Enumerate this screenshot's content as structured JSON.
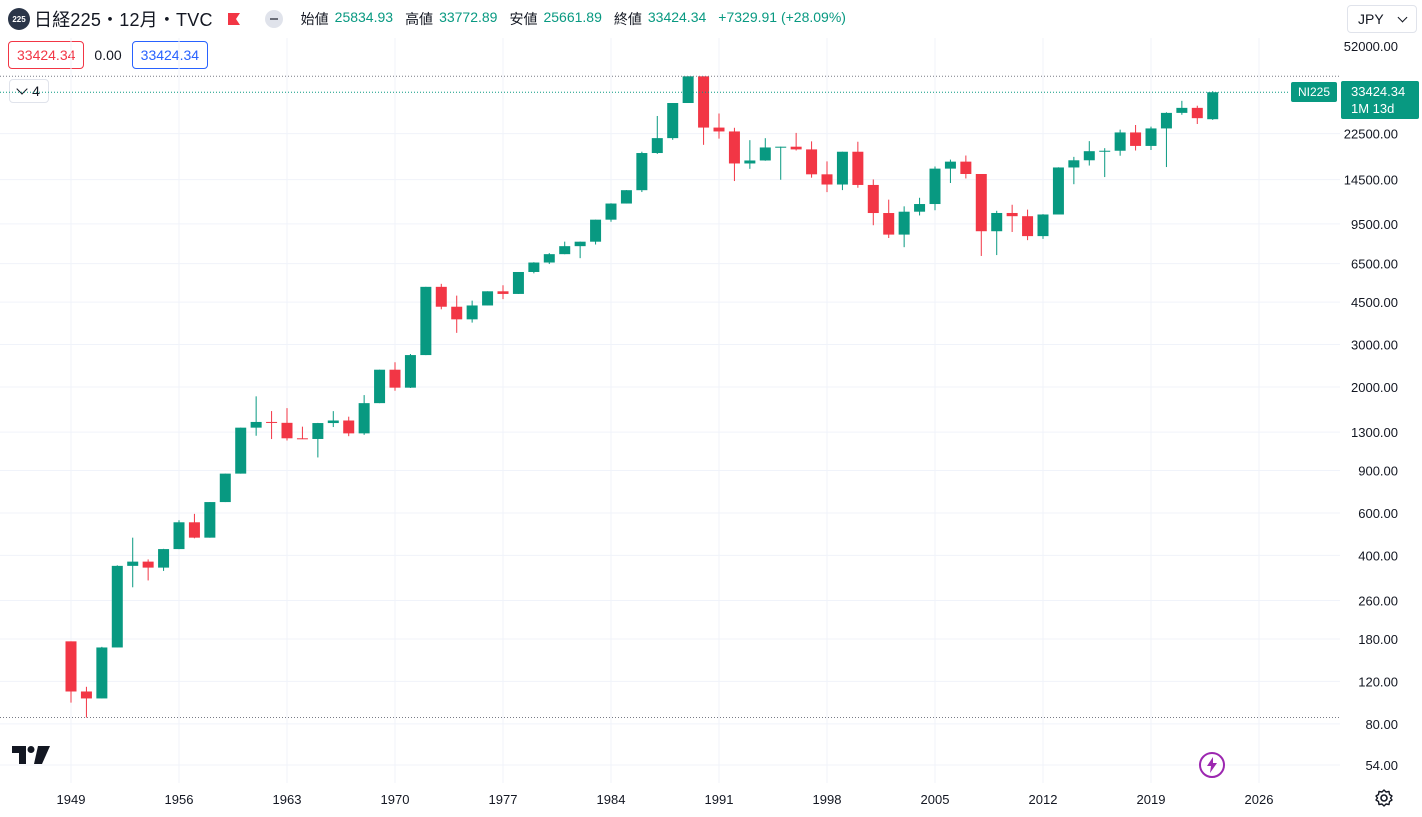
{
  "header": {
    "symbol_icon": "225",
    "title": "日経225・12月・TVC",
    "ohlc": [
      {
        "label": "始値",
        "value": "25834.93"
      },
      {
        "label": "高値",
        "value": "33772.89"
      },
      {
        "label": "安値",
        "value": "25661.89"
      },
      {
        "label": "終値",
        "value": "33424.34"
      },
      {
        "label": "",
        "value": "+7329.91 (+28.09%)"
      }
    ],
    "sell_price": "33424.34",
    "spread": "0.00",
    "buy_price": "33424.34",
    "indicator_count": "4",
    "currency": "JPY"
  },
  "price_tag": {
    "symbol": "NI225",
    "price": "33424.34",
    "countdown": "1M 13d"
  },
  "colors": {
    "up": "#089981",
    "down": "#f23645",
    "grid": "#f0f3fa",
    "text": "#131722"
  },
  "icons": [
    "symbol-icon",
    "flag-icon",
    "eye-icon",
    "chevron-down-icon",
    "tradingview-logo-icon",
    "lightning-icon",
    "gear-icon"
  ],
  "chart_data": {
    "type": "candlestick",
    "y_scale": "log",
    "y_ticks": [
      54,
      80,
      120,
      180,
      260,
      400,
      600,
      900,
      1300,
      2000,
      3000,
      4500,
      6500,
      9500,
      14500,
      22500,
      52000
    ],
    "x_ticks": [
      1949,
      1956,
      1963,
      1970,
      1977,
      1984,
      1991,
      1998,
      2005,
      2012,
      2019,
      2026
    ],
    "ylim": [
      50,
      60000
    ],
    "xlim": [
      1948.3,
      2028.6
    ],
    "current_price": 33424.34,
    "series": [
      {
        "year": 1949,
        "open": 176,
        "high": 176,
        "low": 98,
        "close": 109
      },
      {
        "year": 1950,
        "open": 109,
        "high": 114,
        "low": 85,
        "close": 102
      },
      {
        "year": 1951,
        "open": 102,
        "high": 167,
        "low": 102,
        "close": 166
      },
      {
        "year": 1952,
        "open": 166,
        "high": 364,
        "low": 166,
        "close": 362
      },
      {
        "year": 1953,
        "open": 362,
        "high": 474,
        "low": 295,
        "close": 377
      },
      {
        "year": 1954,
        "open": 377,
        "high": 385,
        "low": 315,
        "close": 356
      },
      {
        "year": 1955,
        "open": 356,
        "high": 426,
        "low": 345,
        "close": 425
      },
      {
        "year": 1956,
        "open": 425,
        "high": 560,
        "low": 425,
        "close": 549
      },
      {
        "year": 1957,
        "open": 549,
        "high": 595,
        "low": 471,
        "close": 474
      },
      {
        "year": 1958,
        "open": 474,
        "high": 666,
        "low": 474,
        "close": 666
      },
      {
        "year": 1959,
        "open": 666,
        "high": 874,
        "low": 666,
        "close": 874
      },
      {
        "year": 1960,
        "open": 874,
        "high": 1356,
        "low": 874,
        "close": 1356
      },
      {
        "year": 1961,
        "open": 1356,
        "high": 1829,
        "low": 1255,
        "close": 1432
      },
      {
        "year": 1962,
        "open": 1432,
        "high": 1589,
        "low": 1216,
        "close": 1420
      },
      {
        "year": 1963,
        "open": 1420,
        "high": 1634,
        "low": 1200,
        "close": 1225
      },
      {
        "year": 1964,
        "open": 1225,
        "high": 1369,
        "low": 1216,
        "close": 1217
      },
      {
        "year": 1965,
        "open": 1217,
        "high": 1419,
        "low": 1020,
        "close": 1417
      },
      {
        "year": 1966,
        "open": 1417,
        "high": 1588,
        "low": 1364,
        "close": 1452
      },
      {
        "year": 1967,
        "open": 1452,
        "high": 1506,
        "low": 1250,
        "close": 1284
      },
      {
        "year": 1968,
        "open": 1284,
        "high": 1851,
        "low": 1266,
        "close": 1714
      },
      {
        "year": 1969,
        "open": 1714,
        "high": 2359,
        "low": 1714,
        "close": 2359
      },
      {
        "year": 1970,
        "open": 2359,
        "high": 2534,
        "low": 1929,
        "close": 1987
      },
      {
        "year": 1971,
        "open": 1987,
        "high": 2741,
        "low": 1981,
        "close": 2713
      },
      {
        "year": 1972,
        "open": 2713,
        "high": 5207,
        "low": 2712,
        "close": 5207
      },
      {
        "year": 1973,
        "open": 5207,
        "high": 5359,
        "low": 4202,
        "close": 4306
      },
      {
        "year": 1974,
        "open": 4306,
        "high": 4788,
        "low": 3355,
        "close": 3817
      },
      {
        "year": 1975,
        "open": 3817,
        "high": 4564,
        "low": 3700,
        "close": 4358
      },
      {
        "year": 1976,
        "open": 4358,
        "high": 4990,
        "low": 4358,
        "close": 4990
      },
      {
        "year": 1977,
        "open": 4990,
        "high": 5287,
        "low": 4630,
        "close": 4866
      },
      {
        "year": 1978,
        "open": 4866,
        "high": 6001,
        "low": 4866,
        "close": 6001
      },
      {
        "year": 1979,
        "open": 6001,
        "high": 6590,
        "low": 5925,
        "close": 6569
      },
      {
        "year": 1980,
        "open": 6569,
        "high": 7188,
        "low": 6475,
        "close": 7116
      },
      {
        "year": 1981,
        "open": 7116,
        "high": 8019,
        "low": 7110,
        "close": 7681
      },
      {
        "year": 1982,
        "open": 7681,
        "high": 8026,
        "low": 6849,
        "close": 8016
      },
      {
        "year": 1983,
        "open": 8016,
        "high": 9893,
        "low": 7803,
        "close": 9893
      },
      {
        "year": 1984,
        "open": 9893,
        "high": 11577,
        "low": 9703,
        "close": 11542
      },
      {
        "year": 1985,
        "open": 11542,
        "high": 13129,
        "low": 11545,
        "close": 13113
      },
      {
        "year": 1986,
        "open": 13113,
        "high": 18936,
        "low": 12881,
        "close": 18701
      },
      {
        "year": 1987,
        "open": 18701,
        "high": 26646,
        "low": 18544,
        "close": 21564
      },
      {
        "year": 1988,
        "open": 21564,
        "high": 30159,
        "low": 21217,
        "close": 30159
      },
      {
        "year": 1989,
        "open": 30159,
        "high": 38957,
        "low": 30183,
        "close": 38916
      },
      {
        "year": 1990,
        "open": 38916,
        "high": 38712,
        "low": 20222,
        "close": 23849
      },
      {
        "year": 1991,
        "open": 23849,
        "high": 27270,
        "low": 21456,
        "close": 22984
      },
      {
        "year": 1992,
        "open": 22984,
        "high": 23801,
        "low": 14309,
        "close": 16925
      },
      {
        "year": 1993,
        "open": 16925,
        "high": 21148,
        "low": 16078,
        "close": 17417
      },
      {
        "year": 1994,
        "open": 17417,
        "high": 21552,
        "low": 17369,
        "close": 19723
      },
      {
        "year": 1995,
        "open": 19723,
        "high": 19868,
        "low": 14485,
        "close": 19868
      },
      {
        "year": 1996,
        "open": 19868,
        "high": 22666,
        "low": 19161,
        "close": 19361
      },
      {
        "year": 1997,
        "open": 19361,
        "high": 20910,
        "low": 14775,
        "close": 15259
      },
      {
        "year": 1998,
        "open": 15259,
        "high": 17264,
        "low": 12879,
        "close": 13842
      },
      {
        "year": 1999,
        "open": 13842,
        "high": 18934,
        "low": 13122,
        "close": 18934
      },
      {
        "year": 2000,
        "open": 18934,
        "high": 20833,
        "low": 13423,
        "close": 13785
      },
      {
        "year": 2001,
        "open": 13785,
        "high": 14529,
        "low": 9382,
        "close": 10542
      },
      {
        "year": 2002,
        "open": 10542,
        "high": 11979,
        "low": 8303,
        "close": 8578
      },
      {
        "year": 2003,
        "open": 8578,
        "high": 11238,
        "low": 7607,
        "close": 10676
      },
      {
        "year": 2004,
        "open": 10676,
        "high": 12195,
        "low": 10299,
        "close": 11488
      },
      {
        "year": 2005,
        "open": 11488,
        "high": 16445,
        "low": 10825,
        "close": 16111
      },
      {
        "year": 2006,
        "open": 16111,
        "high": 17563,
        "low": 14045,
        "close": 17225
      },
      {
        "year": 2007,
        "open": 17225,
        "high": 18261,
        "low": 14669,
        "close": 15307
      },
      {
        "year": 2008,
        "open": 15307,
        "high": 15156,
        "low": 6994,
        "close": 8859
      },
      {
        "year": 2009,
        "open": 8859,
        "high": 10767,
        "low": 7054,
        "close": 10546
      },
      {
        "year": 2010,
        "open": 10546,
        "high": 11408,
        "low": 8796,
        "close": 10228
      },
      {
        "year": 2011,
        "open": 10228,
        "high": 10891,
        "low": 8135,
        "close": 8455
      },
      {
        "year": 2012,
        "open": 8455,
        "high": 10433,
        "low": 8238,
        "close": 10395
      },
      {
        "year": 2013,
        "open": 10395,
        "high": 16320,
        "low": 10398,
        "close": 16291
      },
      {
        "year": 2014,
        "open": 16291,
        "high": 18030,
        "low": 13885,
        "close": 17450
      },
      {
        "year": 2015,
        "open": 17450,
        "high": 20952,
        "low": 16592,
        "close": 19034
      },
      {
        "year": 2016,
        "open": 19034,
        "high": 19592,
        "low": 14864,
        "close": 19114
      },
      {
        "year": 2017,
        "open": 19114,
        "high": 23382,
        "low": 18225,
        "close": 22765
      },
      {
        "year": 2018,
        "open": 22765,
        "high": 24448,
        "low": 19155,
        "close": 20015
      },
      {
        "year": 2019,
        "open": 20015,
        "high": 24066,
        "low": 19241,
        "close": 23657
      },
      {
        "year": 2020,
        "open": 23657,
        "high": 27602,
        "low": 16358,
        "close": 27444
      },
      {
        "year": 2021,
        "open": 27444,
        "high": 30795,
        "low": 26954,
        "close": 28792
      },
      {
        "year": 2022,
        "open": 28792,
        "high": 29388,
        "low": 24681,
        "close": 26095
      },
      {
        "year": 2023,
        "open": 25834.93,
        "high": 33772.89,
        "low": 25661.89,
        "close": 33424.34
      }
    ]
  }
}
